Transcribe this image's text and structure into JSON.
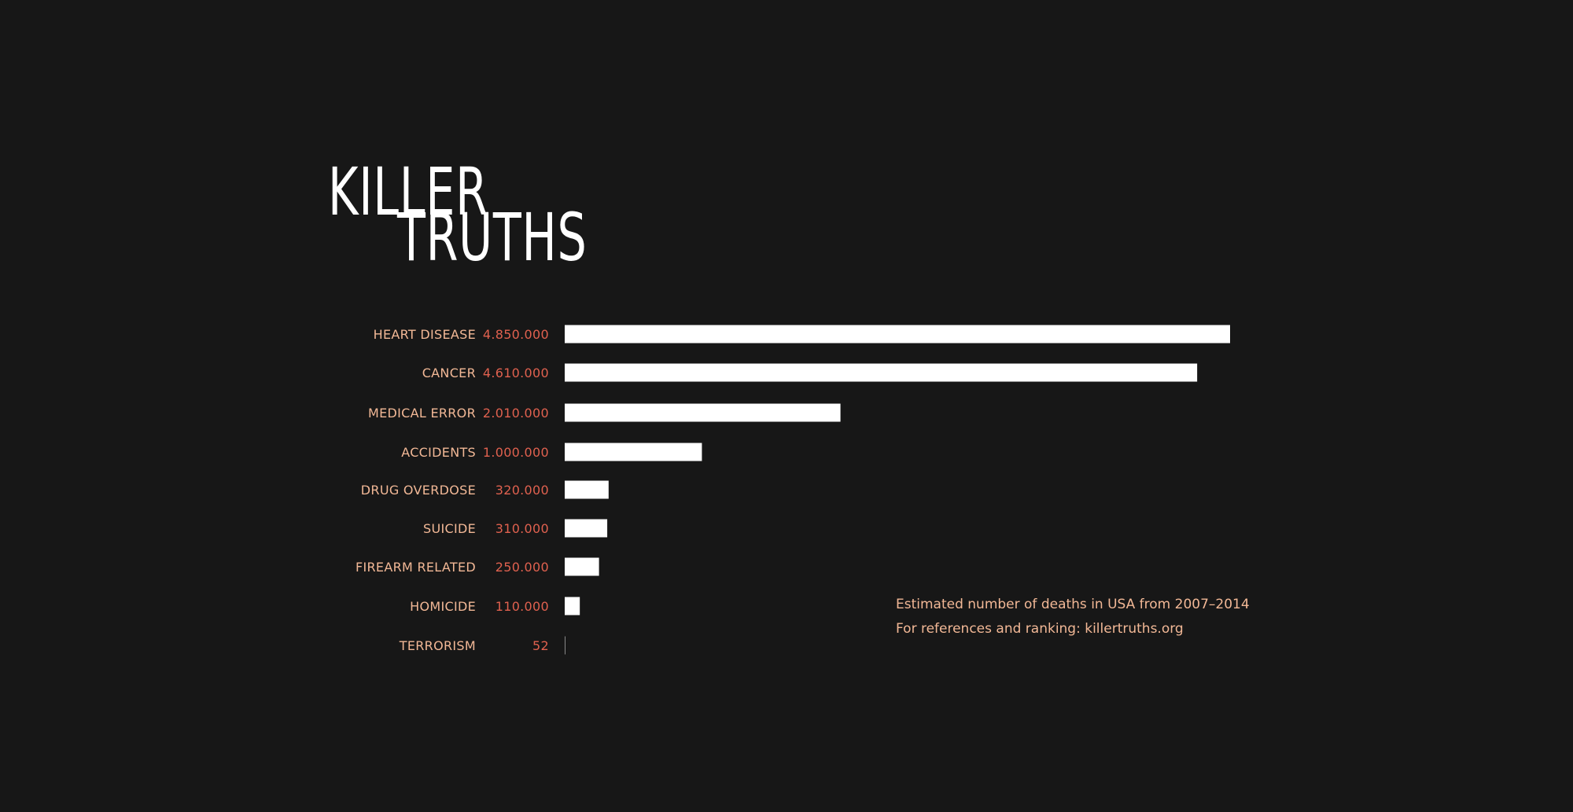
{
  "title": {
    "line1": "KILLER",
    "line2": "TRUTHS"
  },
  "notes": {
    "line1": "Estimated number of deaths in USA from 2007–2014",
    "line2": "For references and ranking: killertruths.org"
  },
  "colors": {
    "background": "#171717",
    "bar": "#ffffff",
    "category_label": "#f2b896",
    "value_label": "#e0614f",
    "title": "#ffffff"
  },
  "chart_data": {
    "type": "bar",
    "orientation": "horizontal",
    "categories": [
      "HEART DISEASE",
      "CANCER",
      "MEDICAL ERROR",
      "ACCIDENTS",
      "DRUG OVERDOSE",
      "SUICIDE",
      "FIREARM RELATED",
      "HOMICIDE",
      "TERRORISM"
    ],
    "values": [
      4850000,
      4610000,
      2010000,
      1000000,
      320000,
      310000,
      250000,
      110000,
      52
    ],
    "value_labels": [
      "4.850.000",
      "4.610.000",
      "2.010.000",
      "1.000.000",
      "320.000",
      "310.000",
      "250.000",
      "110.000",
      "52"
    ],
    "xlim": [
      0,
      4850000
    ],
    "grid": false,
    "legend": "none"
  }
}
